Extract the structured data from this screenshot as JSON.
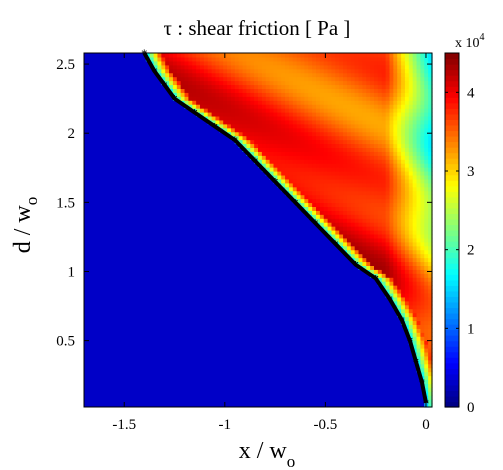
{
  "chart_data": {
    "type": "heatmap",
    "title": "τ : shear friction [ Pa ]",
    "xlabel": {
      "main": "x / w",
      "sub": "o"
    },
    "ylabel": {
      "main": "d / w",
      "sub": "o"
    },
    "xlim": [
      -1.7,
      0.03
    ],
    "ylim": [
      0.02,
      2.58
    ],
    "x_ticks": [
      -1.5,
      -1,
      -0.5,
      0
    ],
    "y_ticks": [
      0.5,
      1,
      1.5,
      2,
      2.5
    ],
    "x_tick_labels": [
      "-1.5",
      "-1",
      "-0.5",
      "0"
    ],
    "y_tick_labels": [
      "0.5",
      "1",
      "1.5",
      "2",
      "2.5"
    ],
    "colorbar": {
      "min": 0,
      "max": 45000,
      "ticks": [
        0,
        1,
        2,
        3,
        4
      ],
      "tick_labels": [
        "0",
        "1",
        "2",
        "3",
        "4"
      ],
      "scale_label": "x 10",
      "scale_exponent": "4",
      "colormap": "jet"
    },
    "boundary_line": {
      "color": "#000000",
      "marker": "*",
      "points": [
        [
          -1.4,
          2.58
        ],
        [
          -1.35,
          2.45
        ],
        [
          -1.3,
          2.35
        ],
        [
          -1.25,
          2.25
        ],
        [
          -1.15,
          2.15
        ],
        [
          -1.05,
          2.05
        ],
        [
          -0.95,
          1.95
        ],
        [
          -0.85,
          1.8
        ],
        [
          -0.75,
          1.65
        ],
        [
          -0.65,
          1.5
        ],
        [
          -0.55,
          1.35
        ],
        [
          -0.45,
          1.2
        ],
        [
          -0.35,
          1.05
        ],
        [
          -0.25,
          0.95
        ],
        [
          -0.18,
          0.8
        ],
        [
          -0.12,
          0.65
        ],
        [
          -0.08,
          0.5
        ],
        [
          -0.05,
          0.35
        ],
        [
          -0.02,
          0.2
        ],
        [
          0.0,
          0.05
        ]
      ]
    }
  }
}
